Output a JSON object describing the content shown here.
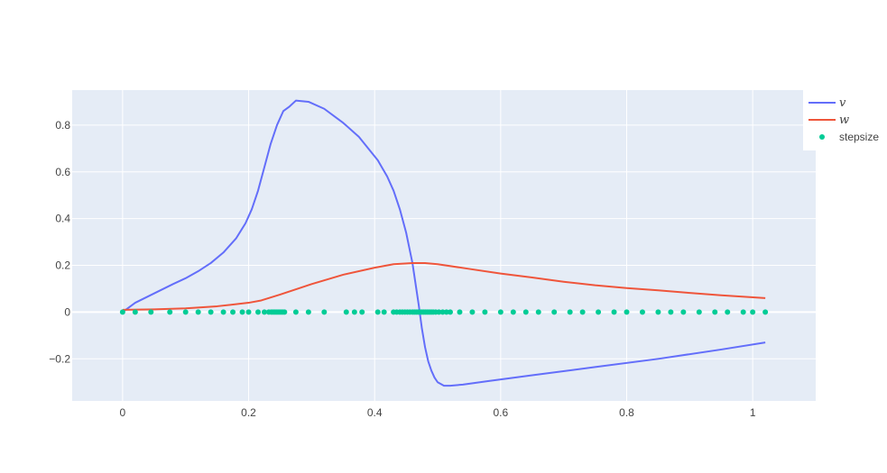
{
  "chart_data": {
    "type": "line",
    "title": "",
    "xlabel": "",
    "ylabel": "",
    "xlim": [
      -0.08,
      1.1
    ],
    "ylim": [
      -0.38,
      0.95
    ],
    "grid": true,
    "legend_position": "top-right",
    "x_ticks": [
      0,
      0.2,
      0.4,
      0.6,
      0.8,
      1
    ],
    "x_tick_labels": [
      "0",
      "0.2",
      "0.4",
      "0.6",
      "0.8",
      "1"
    ],
    "y_ticks": [
      -0.2,
      0,
      0.2,
      0.4,
      0.6,
      0.8
    ],
    "y_tick_labels": [
      "−0.2",
      "0",
      "0.2",
      "0.4",
      "0.6",
      "0.8"
    ],
    "series": [
      {
        "name": "v",
        "mode": "lines",
        "color": "#636efa",
        "x": [
          0,
          0.02,
          0.05,
          0.08,
          0.1,
          0.12,
          0.14,
          0.16,
          0.18,
          0.195,
          0.205,
          0.215,
          0.225,
          0.235,
          0.245,
          0.255,
          0.265,
          0.275,
          0.295,
          0.32,
          0.35,
          0.375,
          0.39,
          0.405,
          0.42,
          0.43,
          0.44,
          0.45,
          0.46,
          0.465,
          0.47,
          0.475,
          0.48,
          0.485,
          0.49,
          0.495,
          0.5,
          0.51,
          0.52,
          0.54,
          0.58,
          0.65,
          0.75,
          0.85,
          0.95,
          1.02
        ],
        "y": [
          0,
          0.04,
          0.08,
          0.12,
          0.145,
          0.175,
          0.21,
          0.255,
          0.315,
          0.38,
          0.44,
          0.52,
          0.62,
          0.72,
          0.8,
          0.86,
          0.88,
          0.905,
          0.9,
          0.87,
          0.81,
          0.75,
          0.7,
          0.65,
          0.58,
          0.52,
          0.44,
          0.34,
          0.21,
          0.12,
          0.03,
          -0.07,
          -0.15,
          -0.21,
          -0.25,
          -0.28,
          -0.3,
          -0.315,
          -0.315,
          -0.31,
          -0.295,
          -0.27,
          -0.235,
          -0.2,
          -0.16,
          -0.13
        ]
      },
      {
        "name": "w",
        "mode": "lines",
        "color": "#ef553b",
        "x": [
          0,
          0.05,
          0.1,
          0.15,
          0.2,
          0.22,
          0.25,
          0.3,
          0.35,
          0.4,
          0.43,
          0.46,
          0.48,
          0.5,
          0.55,
          0.6,
          0.65,
          0.7,
          0.75,
          0.8,
          0.85,
          0.9,
          0.95,
          1.02
        ],
        "y": [
          0.01,
          0.012,
          0.016,
          0.025,
          0.04,
          0.05,
          0.075,
          0.12,
          0.16,
          0.19,
          0.205,
          0.21,
          0.21,
          0.205,
          0.185,
          0.165,
          0.148,
          0.13,
          0.115,
          0.103,
          0.093,
          0.082,
          0.072,
          0.06
        ]
      },
      {
        "name": "stepsize",
        "mode": "markers",
        "color": "#00cc96",
        "x": [
          0,
          0.02,
          0.045,
          0.075,
          0.1,
          0.12,
          0.14,
          0.16,
          0.175,
          0.19,
          0.2,
          0.215,
          0.225,
          0.232,
          0.236,
          0.239,
          0.242,
          0.245,
          0.248,
          0.251,
          0.254,
          0.257,
          0.275,
          0.295,
          0.32,
          0.355,
          0.368,
          0.38,
          0.405,
          0.415,
          0.43,
          0.435,
          0.44,
          0.444,
          0.448,
          0.452,
          0.456,
          0.46,
          0.463,
          0.466,
          0.469,
          0.472,
          0.475,
          0.478,
          0.481,
          0.484,
          0.487,
          0.49,
          0.493,
          0.497,
          0.502,
          0.508,
          0.514,
          0.52,
          0.535,
          0.555,
          0.575,
          0.6,
          0.62,
          0.64,
          0.66,
          0.685,
          0.71,
          0.73,
          0.755,
          0.78,
          0.8,
          0.825,
          0.85,
          0.87,
          0.89,
          0.915,
          0.94,
          0.96,
          0.985,
          1.0,
          1.02
        ],
        "y": [
          0,
          0,
          0,
          0,
          0,
          0,
          0,
          0,
          0,
          0,
          0,
          0,
          0,
          0,
          0,
          0,
          0,
          0,
          0,
          0,
          0,
          0,
          0,
          0,
          0,
          0,
          0,
          0,
          0,
          0,
          0,
          0,
          0,
          0,
          0,
          0,
          0,
          0,
          0,
          0,
          0,
          0,
          0,
          0,
          0,
          0,
          0,
          0,
          0,
          0,
          0,
          0,
          0,
          0,
          0,
          0,
          0,
          0,
          0,
          0,
          0,
          0,
          0,
          0,
          0,
          0,
          0,
          0,
          0,
          0,
          0,
          0,
          0,
          0,
          0,
          0,
          0
        ]
      }
    ]
  }
}
